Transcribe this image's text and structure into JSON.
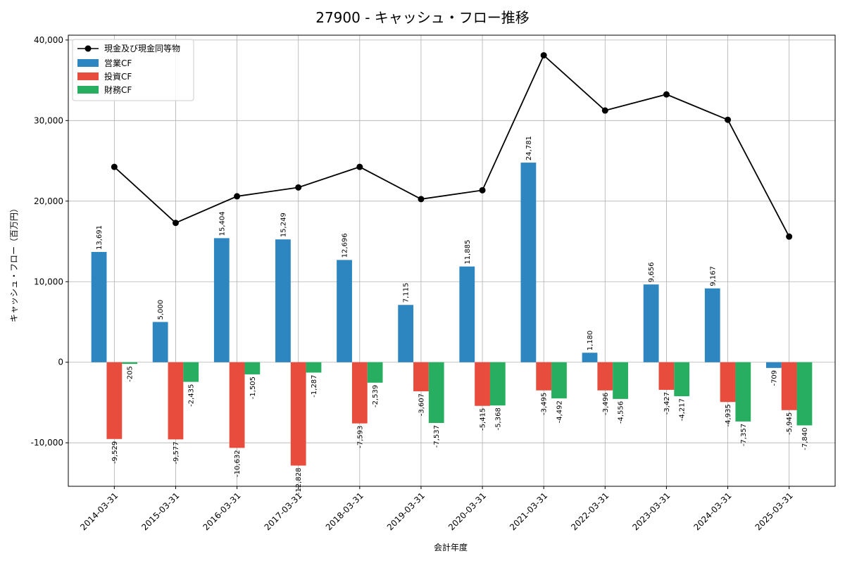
{
  "chart_data": {
    "type": "bar",
    "title": "27900 - キャッシュ・フロー推移",
    "xlabel": "会計年度",
    "ylabel": "キャッシュ・フロー（百万円）",
    "ylim": [
      -15400,
      40600
    ],
    "yticks": [
      -10000,
      0,
      10000,
      20000,
      30000,
      40000
    ],
    "ytick_labels": [
      "-10,000",
      "0",
      "10,000",
      "20,000",
      "30,000",
      "40,000"
    ],
    "grid": true,
    "legend_position": "top-left",
    "categories": [
      "2014-03-31",
      "2015-03-31",
      "2016-03-31",
      "2017-03-31",
      "2018-03-31",
      "2019-03-31",
      "2020-03-31",
      "2021-03-31",
      "2022-03-31",
      "2023-03-31",
      "2024-03-31",
      "2025-03-31"
    ],
    "line_series": {
      "name": "現金及び現金同等物",
      "color": "#000000",
      "values": [
        24250,
        17300,
        20600,
        21700,
        24250,
        20250,
        21350,
        38100,
        31250,
        33250,
        30100,
        15600
      ]
    },
    "series": [
      {
        "name": "営業CF",
        "color": "#2e86c1",
        "values": [
          13691,
          5000,
          15404,
          15249,
          12696,
          7115,
          11885,
          24781,
          1180,
          9656,
          9167,
          -709
        ],
        "labels": [
          "13,691",
          "5,000",
          "15,404",
          "15,249",
          "12,696",
          "7,115",
          "11,885",
          "24,781",
          "1,180",
          "9,656",
          "9,167",
          "-709"
        ]
      },
      {
        "name": "投資CF",
        "color": "#e74c3c",
        "values": [
          -9529,
          -9577,
          -10632,
          -12828,
          -7593,
          -3607,
          -5415,
          -3495,
          -3496,
          -3427,
          -4935,
          -5945
        ],
        "labels": [
          "-9,529",
          "-9,577",
          "-10,632",
          "-12,828",
          "-7,593",
          "-3,607",
          "-5,415",
          "-3,495",
          "-3,496",
          "-3,427",
          "-4,935",
          "-5,945"
        ]
      },
      {
        "name": "財務CF",
        "color": "#27ae60",
        "values": [
          -205,
          -2435,
          -1505,
          -1287,
          -2539,
          -7537,
          -5368,
          -4492,
          -4556,
          -4217,
          -7357,
          -7840
        ],
        "labels": [
          "-205",
          "-2,435",
          "-1,505",
          "-1,287",
          "-2,539",
          "-7,537",
          "-5,368",
          "-4,492",
          "-4,556",
          "-4,217",
          "-7,357",
          "-7,840"
        ]
      }
    ]
  }
}
